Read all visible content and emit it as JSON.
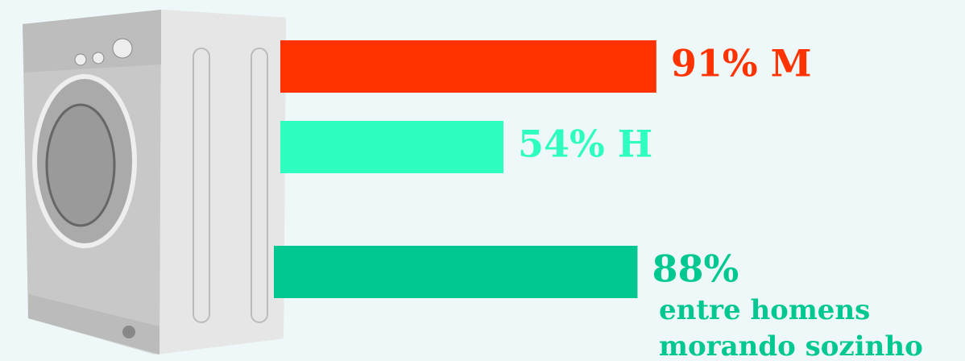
{
  "chart_data": {
    "type": "hbar",
    "values": [
      91,
      54,
      88
    ],
    "value_labels": [
      "91% M",
      "54% H",
      "88%"
    ],
    "colors": [
      "#ff3300",
      "#2effc0",
      "#00c890"
    ],
    "annotation": [
      "entre homens",
      "morando sozinho"
    ]
  }
}
